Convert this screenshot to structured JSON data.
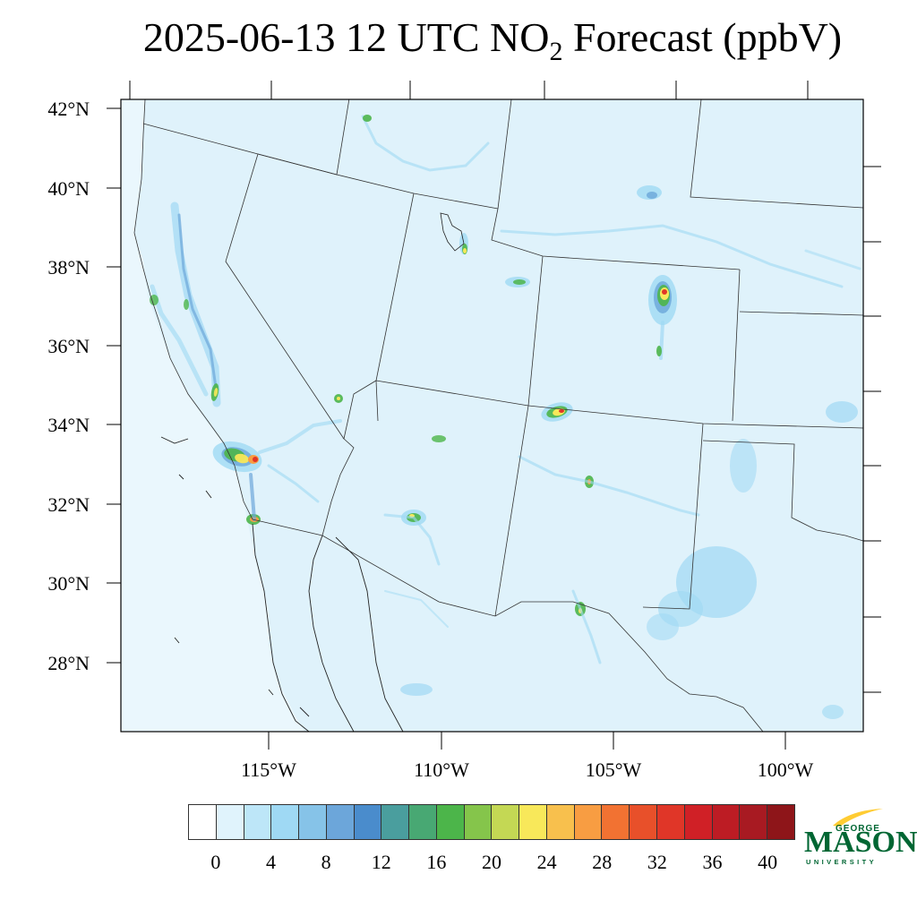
{
  "title": {
    "prefix": "2025-06-13 12 UTC NO",
    "subscript": "2",
    "suffix": " Forecast (ppbV)"
  },
  "latitude_labels": [
    "42°N",
    "40°N",
    "38°N",
    "36°N",
    "34°N",
    "32°N",
    "30°N",
    "28°N"
  ],
  "longitude_labels": [
    "115°W",
    "110°W",
    "105°W",
    "100°W"
  ],
  "colorbar": {
    "colors": [
      "#ffffff",
      "#e0f3fc",
      "#bde6f8",
      "#9fd9f4",
      "#86c3e8",
      "#6ca6da",
      "#4a8ccc",
      "#4a9e9e",
      "#48a873",
      "#4cb54a",
      "#85c54b",
      "#c4d854",
      "#f8e85a",
      "#f8c04d",
      "#f89d42",
      "#f27232",
      "#e8502a",
      "#e03628",
      "#d02026",
      "#bd1c24",
      "#a81a22",
      "#8e1519"
    ],
    "ticks": [
      "0",
      "4",
      "8",
      "12",
      "16",
      "20",
      "24",
      "28",
      "32",
      "36",
      "40"
    ]
  },
  "logo": {
    "line1": "GEORGE",
    "line2": "MASON",
    "line3": "UNIVERSITY",
    "colors": {
      "green": "#006633",
      "gold": "#ffcc33"
    }
  },
  "map_colors": {
    "background": "#dff2fb",
    "light_blue": "#9fd9f4",
    "blue": "#6ca6da",
    "green": "#4cb54a",
    "yellow": "#f8e85a",
    "orange": "#f89d42",
    "red": "#e03628"
  }
}
